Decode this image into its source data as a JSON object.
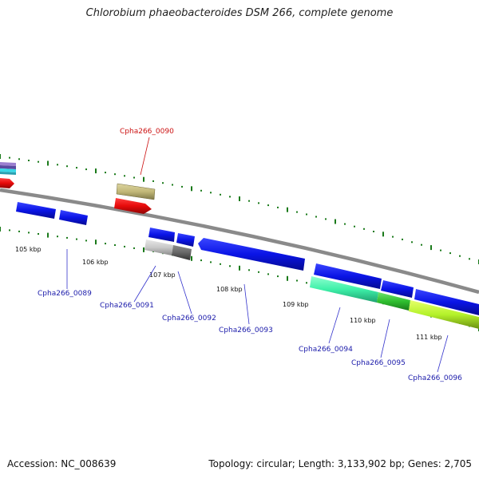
{
  "title": "Chlorobium phaeobacteroides DSM 266, complete genome",
  "footer": {
    "accession": "Accession: NC_008639",
    "summary": "Topology: circular; Length: 3,133,902 bp; Genes: 2,705"
  },
  "scale_labels": [
    "105 kbp",
    "106 kbp",
    "107 kbp",
    "108 kbp",
    "109 kbp",
    "110 kbp",
    "111 kbp"
  ],
  "gene_labels": {
    "g0090": "Cpha266_0090",
    "g0089": "Cpha266_0089",
    "g0091": "Cpha266_0091",
    "g0092": "Cpha266_0092",
    "g0093": "Cpha266_0093",
    "g0094": "Cpha266_0094",
    "g0095": "Cpha266_0095",
    "g0096": "Cpha266_0096"
  },
  "colors": {
    "forward_gene": "#0a14e6",
    "highlight_gene": "#e60a0a",
    "label_blue": "#1a1aaa",
    "label_red": "#cc1111",
    "tick_green": "#1a7a1a",
    "backbone": "#8a8a8a"
  }
}
